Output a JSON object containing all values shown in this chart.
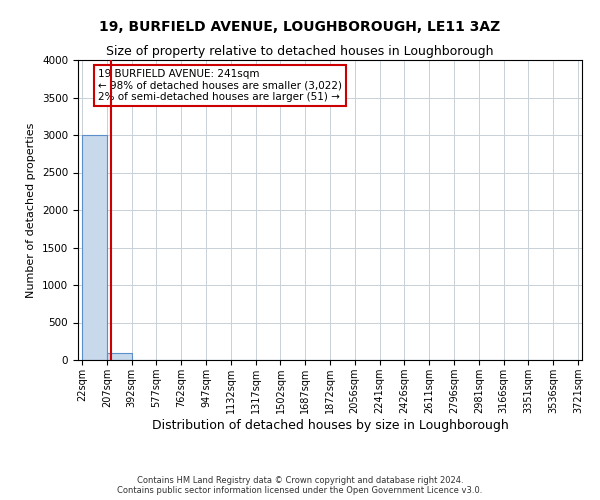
{
  "title": "19, BURFIELD AVENUE, LOUGHBOROUGH, LE11 3AZ",
  "subtitle": "Size of property relative to detached houses in Loughborough",
  "xlabel": "Distribution of detached houses by size in Loughborough",
  "ylabel": "Number of detached properties",
  "footer_line1": "Contains HM Land Registry data © Crown copyright and database right 2024.",
  "footer_line2": "Contains public sector information licensed under the Open Government Licence v3.0.",
  "bar_edges": [
    22,
    207,
    392,
    577,
    762,
    947,
    1132,
    1317,
    1502,
    1687,
    1872,
    2056,
    2241,
    2426,
    2611,
    2796,
    2981,
    3166,
    3351,
    3536,
    3721
  ],
  "bar_labels": [
    "22sqm",
    "207sqm",
    "392sqm",
    "577sqm",
    "762sqm",
    "947sqm",
    "1132sqm",
    "1317sqm",
    "1502sqm",
    "1687sqm",
    "1872sqm",
    "2056sqm",
    "2241sqm",
    "2426sqm",
    "2611sqm",
    "2796sqm",
    "2981sqm",
    "3166sqm",
    "3351sqm",
    "3536sqm",
    "3721sqm"
  ],
  "bar_heights": [
    3000,
    100,
    0,
    0,
    0,
    0,
    0,
    0,
    0,
    0,
    0,
    0,
    0,
    0,
    0,
    0,
    0,
    0,
    0,
    0
  ],
  "bar_color": "#c8d9ec",
  "bar_edge_color": "#5b8fc9",
  "property_line_x": 241,
  "property_line_color": "#cc0000",
  "annotation_line1": "19 BURFIELD AVENUE: 241sqm",
  "annotation_line2": "← 98% of detached houses are smaller (3,022)",
  "annotation_line3": "2% of semi-detached houses are larger (51) →",
  "annotation_box_color": "#cc0000",
  "annotation_text_color": "#000000",
  "ylim": [
    0,
    4000
  ],
  "yticks": [
    0,
    500,
    1000,
    1500,
    2000,
    2500,
    3000,
    3500,
    4000
  ],
  "grid_color": "#c8d0d8",
  "background_color": "#ffffff",
  "title_fontsize": 10,
  "subtitle_fontsize": 9,
  "ylabel_fontsize": 8,
  "xlabel_fontsize": 9,
  "annotation_fontsize": 7.5,
  "tick_fontsize": 7,
  "ytick_fontsize": 7.5
}
